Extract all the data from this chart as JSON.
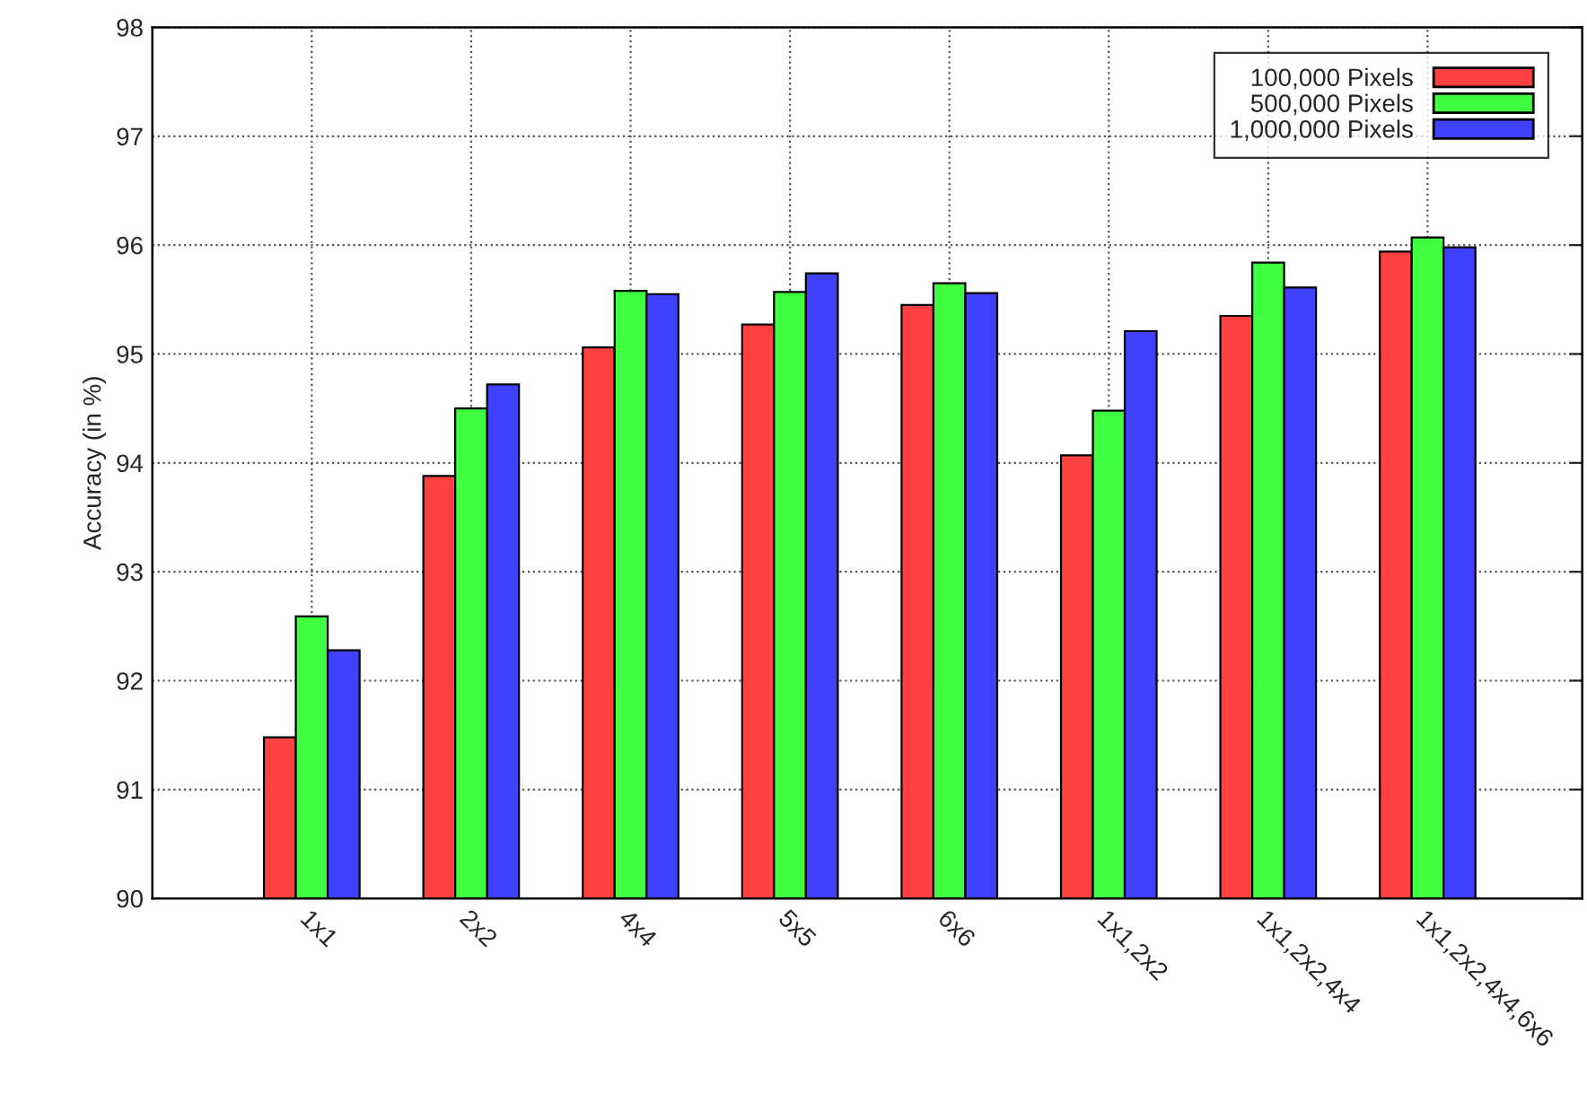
{
  "chart_data": {
    "type": "bar",
    "ylabel": "Accuracy (in %)",
    "categories": [
      "1x1",
      "2x2",
      "4x4",
      "5x5",
      "6x6",
      "1x1,2x2",
      "1x1,2x2,4x4",
      "1x1,2x2,4x4,6x6"
    ],
    "series": [
      {
        "name": "100,000 Pixels",
        "color": "#ff4040",
        "values": [
          91.48,
          93.88,
          95.06,
          95.27,
          95.45,
          94.07,
          95.35,
          95.94
        ]
      },
      {
        "name": "500,000 Pixels",
        "color": "#40ff40",
        "values": [
          92.59,
          94.5,
          95.58,
          95.57,
          95.65,
          94.48,
          95.84,
          96.07
        ]
      },
      {
        "name": "1,000,000 Pixels",
        "color": "#4040ff",
        "values": [
          92.28,
          94.72,
          95.55,
          95.74,
          95.56,
          95.21,
          95.61,
          95.98
        ]
      }
    ],
    "ylim": [
      90,
      98
    ],
    "yticks": [
      90,
      91,
      92,
      93,
      94,
      95,
      96,
      97,
      98
    ],
    "grid": true,
    "legend": "top right"
  }
}
